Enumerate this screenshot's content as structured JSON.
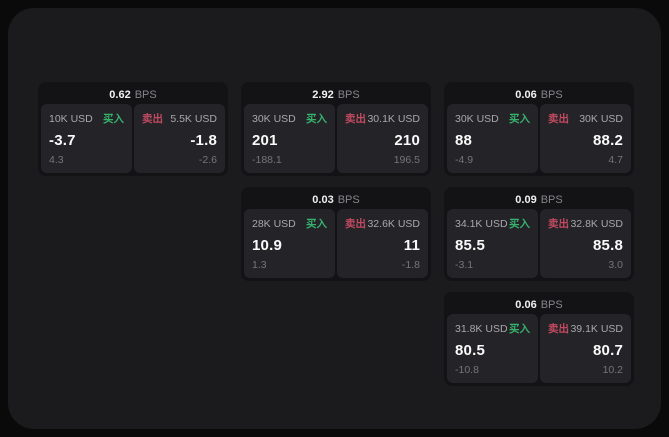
{
  "colors": {
    "buy_green": "#36b26d",
    "sell_red": "#c04a60",
    "container_bg": "#1b1b1d",
    "card_bg": "#131315",
    "panel_bg": "#242428"
  },
  "cards": [
    {
      "row": 1,
      "col": 1,
      "bps": "0.62",
      "unit": "BPS",
      "buy": {
        "amount": "10K USD",
        "label": "买入",
        "value": "-3.7",
        "sub": "4.3"
      },
      "sell": {
        "label": "卖出",
        "amount": "5.5K USD",
        "value": "-1.8",
        "sub": "-2.6"
      }
    },
    {
      "row": 1,
      "col": 2,
      "bps": "2.92",
      "unit": "BPS",
      "buy": {
        "amount": "30K USD",
        "label": "买入",
        "value": "201",
        "sub": "-188.1"
      },
      "sell": {
        "label": "卖出",
        "amount": "30.1K USD",
        "value": "210",
        "sub": "196.5"
      }
    },
    {
      "row": 1,
      "col": 3,
      "bps": "0.06",
      "unit": "BPS",
      "buy": {
        "amount": "30K USD",
        "label": "买入",
        "value": "88",
        "sub": "-4.9"
      },
      "sell": {
        "label": "卖出",
        "amount": "30K USD",
        "value": "88.2",
        "sub": "4.7"
      }
    },
    {
      "row": 2,
      "col": 2,
      "bps": "0.03",
      "unit": "BPS",
      "buy": {
        "amount": "28K USD",
        "label": "买入",
        "value": "10.9",
        "sub": "1.3"
      },
      "sell": {
        "label": "卖出",
        "amount": "32.6K USD",
        "value": "11",
        "sub": "-1.8"
      }
    },
    {
      "row": 2,
      "col": 3,
      "bps": "0.09",
      "unit": "BPS",
      "buy": {
        "amount": "34.1K USD",
        "label": "买入",
        "value": "85.5",
        "sub": "-3.1"
      },
      "sell": {
        "label": "卖出",
        "amount": "32.8K USD",
        "value": "85.8",
        "sub": "3.0"
      }
    },
    {
      "row": 3,
      "col": 3,
      "bps": "0.06",
      "unit": "BPS",
      "buy": {
        "amount": "31.8K USD",
        "label": "买入",
        "value": "80.5",
        "sub": "-10.8"
      },
      "sell": {
        "label": "卖出",
        "amount": "39.1K USD",
        "value": "80.7",
        "sub": "10.2"
      }
    }
  ]
}
